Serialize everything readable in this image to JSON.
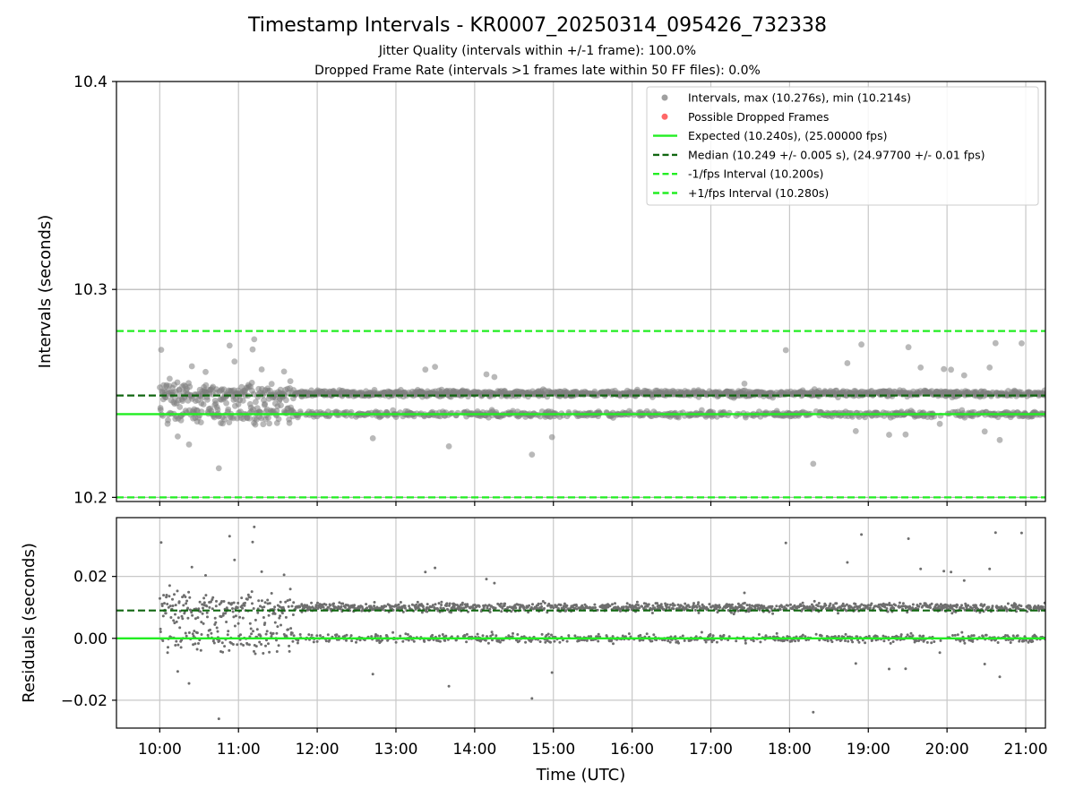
{
  "title": "Timestamp Intervals - KR0007_20250314_095426_732338",
  "subtitle_1": "Jitter Quality (intervals within +/-1 frame): 100.0%",
  "subtitle_2": "Dropped Frame Rate (intervals >1 frames late within 50 FF files): 0.0%",
  "colors": {
    "points": "#808080",
    "dropped": "#ff4c4c",
    "expected": "#22ee22",
    "median": "#116611",
    "fps_bounds": "#22ee22",
    "grid": "#c8c8c8"
  },
  "chart_data": [
    {
      "type": "scatter",
      "panel": "top",
      "ylabel": "Intervals (seconds)",
      "ylim": [
        10.198,
        10.4
      ],
      "yticks": [
        "10.2",
        "10.3",
        "10.4"
      ],
      "ytick_values": [
        10.2,
        10.3,
        10.4
      ],
      "grid": true,
      "legend_placement": "top-right",
      "legend": [
        {
          "label": "Intervals, max (10.276s), min (10.214s)",
          "kind": "marker",
          "color": "#a0a0a0"
        },
        {
          "label": "Possible Dropped Frames",
          "kind": "marker",
          "color": "#ff4c4c"
        },
        {
          "label": "Expected (10.240s), (25.00000 fps)",
          "kind": "solid",
          "color": "#22ee22"
        },
        {
          "label": "Median (10.249 +/- 0.005 s), (24.97700 +/- 0.01 fps)",
          "kind": "dashed",
          "color": "#116611"
        },
        {
          "label": "-1/fps Interval (10.200s)",
          "kind": "dashed",
          "color": "#22ee22"
        },
        {
          "label": "+1/fps Interval (10.280s)",
          "kind": "dashed",
          "color": "#22ee22"
        }
      ],
      "reference_lines": {
        "expected": 10.24,
        "median": 10.249,
        "lower": 10.2,
        "upper": 10.28
      },
      "clusters": {
        "lower_band": 10.24,
        "upper_band": 10.25
      },
      "max": 10.276,
      "min": 10.214
    },
    {
      "type": "scatter",
      "panel": "bottom",
      "ylabel": "Residuals (seconds)",
      "xlabel": "Time (UTC)",
      "ylim": [
        -0.029,
        0.039
      ],
      "yticks": [
        "−0.02",
        "0.00",
        "0.02"
      ],
      "ytick_values": [
        -0.02,
        0.0,
        0.02
      ],
      "grid": true,
      "reference_lines": {
        "expected": 0.0,
        "median": 0.009
      },
      "clusters": {
        "lower_band": 0.0,
        "upper_band": 0.01
      }
    }
  ],
  "x_axis": {
    "label": "Time (UTC)",
    "range_hours": [
      9.45,
      21.25
    ],
    "ticks": [
      "10:00",
      "11:00",
      "12:00",
      "13:00",
      "14:00",
      "15:00",
      "16:00",
      "17:00",
      "18:00",
      "19:00",
      "20:00",
      "21:00"
    ],
    "tick_hours": [
      10,
      11,
      12,
      13,
      14,
      15,
      16,
      17,
      18,
      19,
      20,
      21
    ]
  }
}
